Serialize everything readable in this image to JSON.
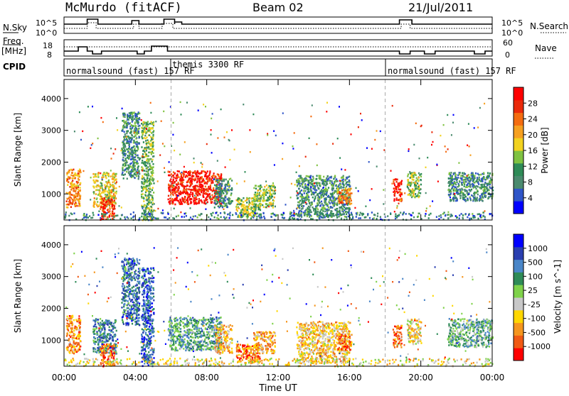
{
  "header": {
    "station": "McMurdo (fitACF)",
    "beam": "Beam 02",
    "date": "21/Jul/2011"
  },
  "colors": {
    "power_scale": [
      "#0000ff",
      "#2f55c8",
      "#4a8a6e",
      "#2e8b57",
      "#7fc241",
      "#f2d21f",
      "#f6a020",
      "#f46c10",
      "#ea2a0a",
      "#ff0000"
    ],
    "velocity_scale": [
      "#ff0000",
      "#f05a14",
      "#f5961e",
      "#ffd700",
      "#c8c8c8",
      "#7fd24a",
      "#2e8b57",
      "#4a86c8",
      "#2a3fb0",
      "#0000ff"
    ],
    "ground_scatter": "#b4b4b4"
  },
  "panels": {
    "nsky": {
      "label": "N.Sky",
      "left_ticks": [
        "10^5",
        "10^0"
      ],
      "right_label": "N.Search",
      "right_ticks": [
        "10^5",
        "10^0"
      ]
    },
    "freq": {
      "label_line1": "Freq.",
      "label_line2": "[MHz]",
      "left_ticks": [
        "18",
        "8"
      ],
      "right_label": "Nave",
      "right_ticks": [
        "60",
        "0"
      ]
    },
    "cpid": {
      "label": "CPID",
      "segments": [
        {
          "text": "normalsound (fast) 157 RF",
          "start_h": 0
        },
        {
          "text": "themis 3300 RF",
          "start_h": 6
        },
        {
          "text": "normalsound (fast) 157 RF",
          "start_h": 18
        }
      ]
    }
  },
  "chart_data": [
    {
      "type": "heatmap",
      "title": "Power",
      "xlabel": "Time UT",
      "ylabel": "Slant Range [km]",
      "xlim": [
        0,
        24
      ],
      "x_tick_labels": [
        "00:00",
        "04:00",
        "08:00",
        "12:00",
        "16:00",
        "20:00",
        "00:00"
      ],
      "x_ticks_h": [
        0,
        4,
        8,
        12,
        16,
        20,
        24
      ],
      "ylim": [
        180,
        4600
      ],
      "y_ticks": [
        1000,
        2000,
        3000,
        4000
      ],
      "colorbar_label": "Power [dB]",
      "colorbar_ticks": [
        "28",
        "24",
        "20",
        "16",
        "12",
        "8",
        "4"
      ],
      "colorbar_range": [
        0,
        30
      ],
      "scatter_regions": [
        {
          "t": [
            0.1,
            0.9
          ],
          "r": [
            600,
            1800
          ],
          "level": 0.7
        },
        {
          "t": [
            1.6,
            2.9
          ],
          "r": [
            600,
            1700
          ],
          "level": 0.55
        },
        {
          "t": [
            2.0,
            2.8
          ],
          "r": [
            200,
            900
          ],
          "level": 0.85
        },
        {
          "t": [
            3.2,
            4.2
          ],
          "r": [
            1500,
            3600
          ],
          "level": 0.3
        },
        {
          "t": [
            4.3,
            5.0
          ],
          "r": [
            200,
            3300
          ],
          "level": 0.4
        },
        {
          "t": [
            5.8,
            8.8
          ],
          "r": [
            700,
            1750
          ],
          "level": 0.9
        },
        {
          "t": [
            8.4,
            9.4
          ],
          "r": [
            600,
            1500
          ],
          "level": 0.3
        },
        {
          "t": [
            9.6,
            11.0
          ],
          "r": [
            300,
            900
          ],
          "level": 0.5
        },
        {
          "t": [
            10.6,
            11.8
          ],
          "r": [
            600,
            1300
          ],
          "level": 0.45
        },
        {
          "t": [
            13.0,
            16.0
          ],
          "r": [
            300,
            1600
          ],
          "level": 0.3
        },
        {
          "t": [
            15.3,
            16.1
          ],
          "r": [
            700,
            1200
          ],
          "level": 0.7
        },
        {
          "t": [
            18.4,
            18.9
          ],
          "r": [
            800,
            1500
          ],
          "level": 0.9
        },
        {
          "t": [
            19.2,
            20.0
          ],
          "r": [
            900,
            1700
          ],
          "level": 0.45
        },
        {
          "t": [
            21.5,
            24.0
          ],
          "r": [
            800,
            1700
          ],
          "level": 0.3
        },
        {
          "t": [
            0.0,
            24.0
          ],
          "r": [
            200,
            450
          ],
          "level": 0.25
        }
      ]
    },
    {
      "type": "heatmap",
      "title": "Velocity",
      "xlabel": "Time UT",
      "ylabel": "Slant Range [km]",
      "xlim": [
        0,
        24
      ],
      "x_tick_labels": [
        "00:00",
        "04:00",
        "08:00",
        "12:00",
        "16:00",
        "20:00",
        "00:00"
      ],
      "x_ticks_h": [
        0,
        4,
        8,
        12,
        16,
        20,
        24
      ],
      "ylim": [
        180,
        4600
      ],
      "y_ticks": [
        1000,
        2000,
        3000,
        4000
      ],
      "colorbar_label": "Velocity [m s^-1]",
      "colorbar_ticks": [
        "1000",
        "500",
        "100",
        "25",
        "-25",
        "-100",
        "-500",
        "-1000"
      ],
      "colorbar_range": [
        -1000,
        1000
      ],
      "scatter_regions": [
        {
          "t": [
            0.1,
            0.9
          ],
          "r": [
            600,
            1800
          ],
          "level": 0.25
        },
        {
          "t": [
            1.6,
            2.9
          ],
          "r": [
            600,
            1700
          ],
          "level": 0.7
        },
        {
          "t": [
            2.0,
            2.8
          ],
          "r": [
            200,
            900
          ],
          "level": 0.15
        },
        {
          "t": [
            3.2,
            4.2
          ],
          "r": [
            1500,
            3600
          ],
          "level": 0.75
        },
        {
          "t": [
            4.3,
            5.0
          ],
          "r": [
            200,
            3300
          ],
          "level": 0.8
        },
        {
          "t": [
            5.8,
            8.8
          ],
          "r": [
            700,
            1750
          ],
          "level": 0.65
        },
        {
          "t": [
            8.4,
            9.4
          ],
          "r": [
            600,
            1500
          ],
          "level": 0.3
        },
        {
          "t": [
            9.6,
            11.0
          ],
          "r": [
            300,
            900
          ],
          "level": 0.2
        },
        {
          "t": [
            10.6,
            11.8
          ],
          "r": [
            600,
            1300
          ],
          "level": 0.3
        },
        {
          "t": [
            13.0,
            16.0
          ],
          "r": [
            300,
            1600
          ],
          "level": 0.35
        },
        {
          "t": [
            15.3,
            16.1
          ],
          "r": [
            700,
            1200
          ],
          "level": 0.2
        },
        {
          "t": [
            18.4,
            18.9
          ],
          "r": [
            800,
            1500
          ],
          "level": 0.15
        },
        {
          "t": [
            19.2,
            20.0
          ],
          "r": [
            900,
            1700
          ],
          "level": 0.4
        },
        {
          "t": [
            21.5,
            24.0
          ],
          "r": [
            800,
            1700
          ],
          "level": 0.6
        },
        {
          "t": [
            0.0,
            24.0
          ],
          "r": [
            200,
            450
          ],
          "level": 0.4
        }
      ]
    }
  ]
}
